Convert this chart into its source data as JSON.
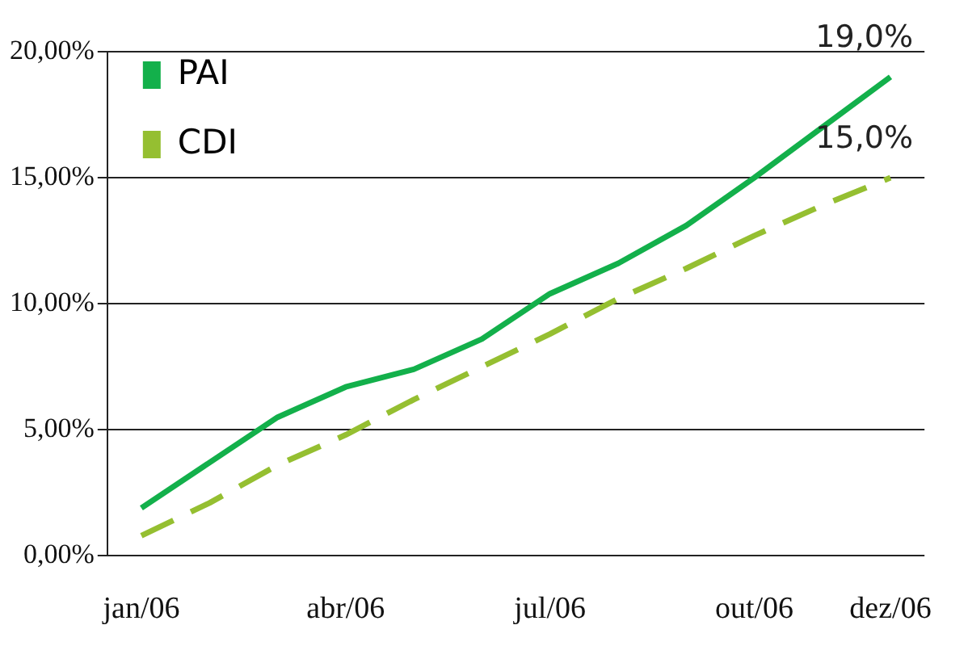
{
  "chart_data": {
    "type": "line",
    "categories": [
      "jan/06",
      null,
      null,
      "abr/06",
      null,
      null,
      "jul/06",
      null,
      null,
      "out/06",
      null,
      "dez/06"
    ],
    "series": [
      {
        "name": "PAI",
        "color": "#13b04b",
        "line_style": "solid",
        "values": [
          1.9,
          3.7,
          5.5,
          6.7,
          7.4,
          8.6,
          10.4,
          11.6,
          13.1,
          15.0,
          17.0,
          19.0
        ]
      },
      {
        "name": "CDI",
        "color": "#95bf31",
        "line_style": "dashed",
        "values": [
          0.8,
          2.1,
          3.6,
          4.8,
          6.2,
          7.5,
          8.8,
          10.2,
          11.4,
          12.7,
          13.9,
          15.0
        ]
      }
    ],
    "ylim": [
      0,
      20
    ],
    "yticks": [
      {
        "value": 0,
        "label": "0,00%"
      },
      {
        "value": 5,
        "label": "5,00%"
      },
      {
        "value": 10,
        "label": "10,00%"
      },
      {
        "value": 15,
        "label": "15,00%"
      },
      {
        "value": 20,
        "label": "20,00%"
      }
    ],
    "grid": "y",
    "legend": "top left",
    "marker": "none",
    "annotations": [
      {
        "text": "19,0%",
        "x": "dez/06",
        "y": 19.0
      },
      {
        "text": "15,0%",
        "x": "dez/06",
        "y": 15.0
      }
    ]
  }
}
